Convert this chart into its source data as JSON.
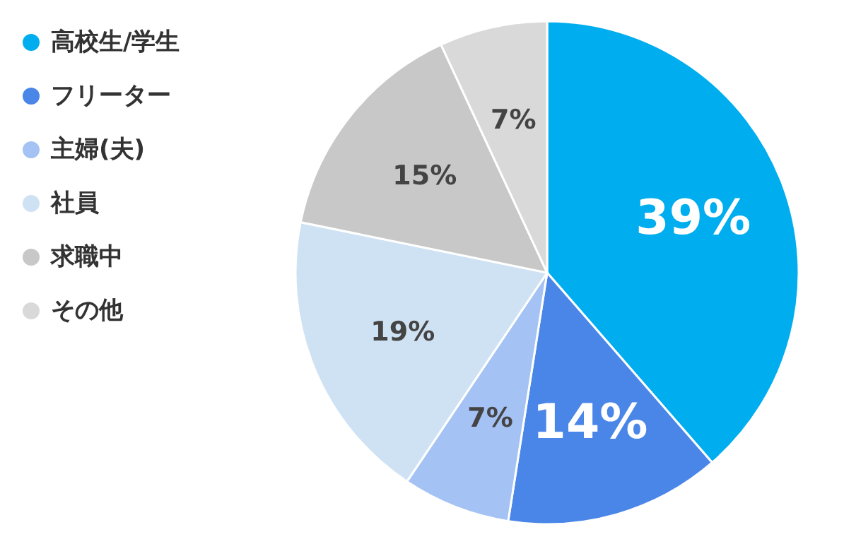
{
  "chart_data": {
    "type": "pie",
    "categories": [
      "高校生/学生",
      "フリーター",
      "主婦(夫)",
      "社員",
      "求職中",
      "その他"
    ],
    "values": [
      39,
      14,
      7,
      19,
      15,
      7
    ],
    "colors": [
      "#00aeef",
      "#4a86e8",
      "#a4c2f4",
      "#cfe2f3",
      "#c8c8c8",
      "#d9d9d9"
    ],
    "value_labels": [
      "39%",
      "14%",
      "7%",
      "19%",
      "15%",
      "7%"
    ],
    "legend": "left"
  }
}
